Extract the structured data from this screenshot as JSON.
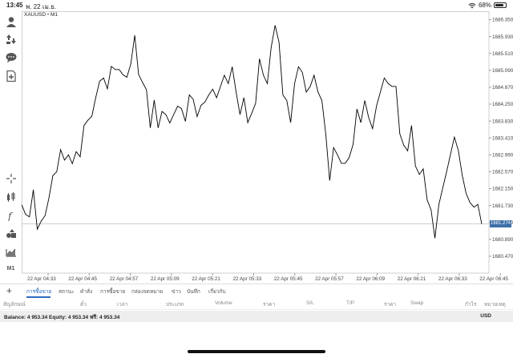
{
  "status": {
    "time": "13:45",
    "date": "พ. 22 เม.ย.",
    "battery": "68%",
    "battery_level": 0.68
  },
  "toolbar_icons": [
    "account-icon",
    "trade-arrows-icon",
    "chat-icon",
    "new-order-icon",
    "crosshair-icon",
    "indicators-icon",
    "function-icon",
    "objects-icon",
    "chart-type-icon",
    "timeframe-m1-icon"
  ],
  "timeframe_label": "M1",
  "chart": {
    "symbol": "XAUUSD",
    "separator": "•",
    "timeframe": "M1",
    "current_price": "1681.274",
    "line_color": "#000000",
    "price_tag_color": "#3d6fa8"
  },
  "chart_data": {
    "type": "line",
    "title": "XAUUSD • M1",
    "ylim": [
      1680.05,
      1686.56
    ],
    "y_ticks": [
      "1686.350",
      "1685.930",
      "1685.510",
      "1685.090",
      "1684.670",
      "1684.250",
      "1683.830",
      "1683.410",
      "1682.990",
      "1682.570",
      "1682.150",
      "1681.730",
      "1681.310",
      "1680.890",
      "1680.470"
    ],
    "y_tick_values": [
      1686.35,
      1685.93,
      1685.51,
      1685.09,
      1684.67,
      1684.25,
      1683.83,
      1683.41,
      1682.99,
      1682.57,
      1682.15,
      1681.73,
      1681.31,
      1680.89,
      1680.47
    ],
    "x_ticks": [
      "22 Apr 04:33",
      "22 Apr 04:45",
      "22 Apr 04:57",
      "22 Apr 05:09",
      "22 Apr 05:21",
      "22 Apr 05:33",
      "22 Apr 05:45",
      "22 Apr 05:57",
      "22 Apr 06:09",
      "22 Apr 06:21",
      "22 Apr 06:33",
      "22 Apr 06:45"
    ],
    "current_price": 1681.274,
    "series": [
      {
        "values": [
          1681.75,
          1681.51,
          1681.45,
          1682.12,
          1681.14,
          1681.34,
          1681.48,
          1681.92,
          1682.47,
          1682.57,
          1683.12,
          1682.86,
          1682.99,
          1682.77,
          1683.07,
          1682.94,
          1683.72,
          1683.85,
          1683.95,
          1684.41,
          1684.82,
          1684.9,
          1684.63,
          1685.19,
          1685.11,
          1685.11,
          1684.98,
          1684.92,
          1685.25,
          1685.96,
          1684.99,
          1684.79,
          1684.61,
          1683.66,
          1684.35,
          1683.66,
          1684.07,
          1683.99,
          1683.78,
          1683.99,
          1684.2,
          1684.14,
          1683.82,
          1684.48,
          1684.37,
          1683.94,
          1684.22,
          1684.3,
          1684.48,
          1684.62,
          1684.41,
          1684.69,
          1684.97,
          1684.76,
          1685.18,
          1684.56,
          1683.99,
          1684.41,
          1683.79,
          1684.02,
          1684.27,
          1685.38,
          1684.97,
          1684.76,
          1685.66,
          1686.21,
          1685.79,
          1684.48,
          1684.34,
          1683.79,
          1684.76,
          1685.18,
          1685.04,
          1684.55,
          1684.69,
          1684.97,
          1684.55,
          1684.34,
          1683.51,
          1682.35,
          1683.17,
          1682.99,
          1682.78,
          1682.78,
          1682.92,
          1683.25,
          1684.13,
          1683.79,
          1684.34,
          1683.92,
          1683.64,
          1684.2,
          1684.55,
          1684.9,
          1684.76,
          1684.69,
          1684.69,
          1683.51,
          1683.23,
          1683.09,
          1683.72,
          1682.71,
          1682.5,
          1682.64,
          1681.87,
          1681.62,
          1680.92,
          1681.75,
          1682.17,
          1682.57,
          1683.01,
          1683.43,
          1683.1,
          1682.48,
          1682.03,
          1681.8,
          1681.69,
          1681.76,
          1681.27
        ]
      }
    ]
  },
  "tabs": [
    {
      "label": "การซื้อขาย",
      "active": true
    },
    {
      "label": "สถานะ",
      "active": false
    },
    {
      "label": "คำสั่ง",
      "active": false
    },
    {
      "label": "การซื้อขาย",
      "active": false
    },
    {
      "label": "กล่องจดหมาย",
      "active": false
    },
    {
      "label": "ข่าว",
      "active": false
    },
    {
      "label": "บันทึก",
      "active": false
    },
    {
      "label": "เกี่ยวกับ",
      "active": false
    }
  ],
  "columns": [
    "สัญลักษณ์",
    "ตั๋ว",
    "เวลา",
    "ประเภท",
    "Volume",
    "ราคา",
    "S/L",
    "T/P",
    "ราคา",
    "Swap",
    "กำไร",
    "หมายเหตุ"
  ],
  "balance": {
    "text": "Balance: 4 953.34 Equity: 4 953.34 ฟรี: 4 953.34",
    "currency": "USD"
  }
}
